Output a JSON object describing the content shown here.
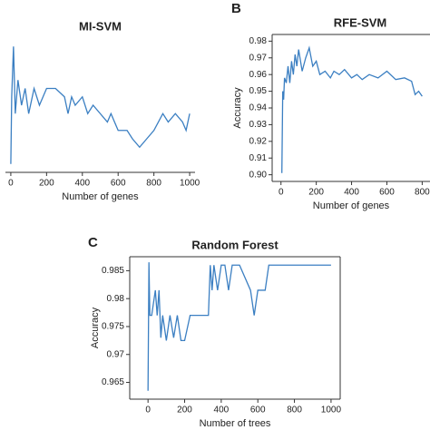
{
  "chart_data": [
    {
      "type": "line",
      "title": "MI-SVM",
      "xlabel": "Number of genes",
      "x": [
        0,
        5,
        15,
        25,
        40,
        60,
        80,
        100,
        130,
        160,
        200,
        250,
        300,
        320,
        340,
        360,
        400,
        430,
        460,
        500,
        540,
        560,
        600,
        650,
        680,
        720,
        760,
        800,
        850,
        880,
        920,
        960,
        980,
        1000
      ],
      "series": [
        {
          "color": "#3b7fc2",
          "values": [
            0.905,
            0.945,
            0.975,
            0.935,
            0.955,
            0.94,
            0.95,
            0.935,
            0.95,
            0.94,
            0.95,
            0.95,
            0.945,
            0.935,
            0.945,
            0.94,
            0.945,
            0.935,
            0.94,
            0.935,
            0.93,
            0.935,
            0.925,
            0.925,
            0.92,
            0.915,
            0.92,
            0.925,
            0.935,
            0.93,
            0.935,
            0.93,
            0.925,
            0.935
          ]
        }
      ],
      "xlim": [
        -30,
        1030
      ],
      "ylim": [
        0.9,
        0.98
      ],
      "xticks": [
        0,
        200,
        400,
        600,
        800,
        1000
      ]
    },
    {
      "type": "line",
      "panel": "B",
      "title": "RFE-SVM",
      "xlabel": "Number of genes",
      "ylabel": "Accuracy",
      "x": [
        5,
        10,
        15,
        20,
        30,
        40,
        50,
        60,
        70,
        80,
        90,
        100,
        120,
        140,
        160,
        180,
        200,
        220,
        250,
        280,
        300,
        330,
        360,
        400,
        430,
        460,
        500,
        550,
        600,
        650,
        700,
        740,
        760,
        780,
        800
      ],
      "series": [
        {
          "color": "#3b7fc2",
          "values": [
            0.901,
            0.95,
            0.945,
            0.958,
            0.955,
            0.965,
            0.955,
            0.968,
            0.96,
            0.972,
            0.965,
            0.975,
            0.962,
            0.97,
            0.976,
            0.965,
            0.968,
            0.96,
            0.962,
            0.958,
            0.962,
            0.96,
            0.963,
            0.958,
            0.96,
            0.957,
            0.96,
            0.958,
            0.962,
            0.957,
            0.958,
            0.956,
            0.948,
            0.95,
            0.947
          ]
        }
      ],
      "xlim": [
        -50,
        870
      ],
      "ylim": [
        0.896,
        0.984
      ],
      "xticks": [
        0,
        200,
        400,
        600,
        800
      ],
      "yticks": [
        {
          "value": 0.9,
          "label": "0.90"
        },
        0.91,
        0.92,
        0.93,
        0.94,
        0.95,
        0.96,
        0.97,
        0.98
      ]
    },
    {
      "type": "line",
      "panel": "C",
      "title": "Random Forest",
      "xlabel": "Number of trees",
      "ylabel": "Accuracy",
      "x": [
        0,
        5,
        10,
        20,
        40,
        50,
        60,
        70,
        80,
        100,
        120,
        140,
        160,
        180,
        200,
        230,
        260,
        300,
        330,
        340,
        350,
        360,
        380,
        400,
        420,
        440,
        460,
        500,
        560,
        580,
        600,
        640,
        660,
        700,
        800,
        1000
      ],
      "series": [
        {
          "color": "#3b7fc2",
          "values": [
            0.9635,
            0.9865,
            0.977,
            0.977,
            0.9815,
            0.977,
            0.9815,
            0.973,
            0.977,
            0.9725,
            0.977,
            0.973,
            0.977,
            0.9725,
            0.9725,
            0.977,
            0.977,
            0.977,
            0.977,
            0.986,
            0.9815,
            0.986,
            0.9815,
            0.986,
            0.986,
            0.9815,
            0.986,
            0.986,
            0.9815,
            0.977,
            0.9815,
            0.9815,
            0.986,
            0.986,
            0.986,
            0.986
          ]
        }
      ],
      "xlim": [
        -100,
        1050
      ],
      "ylim": [
        0.962,
        0.9875
      ],
      "xticks": [
        0,
        200,
        400,
        600,
        800,
        1000
      ],
      "yticks": [
        0.965,
        0.97,
        0.975,
        0.98,
        0.985
      ]
    }
  ]
}
